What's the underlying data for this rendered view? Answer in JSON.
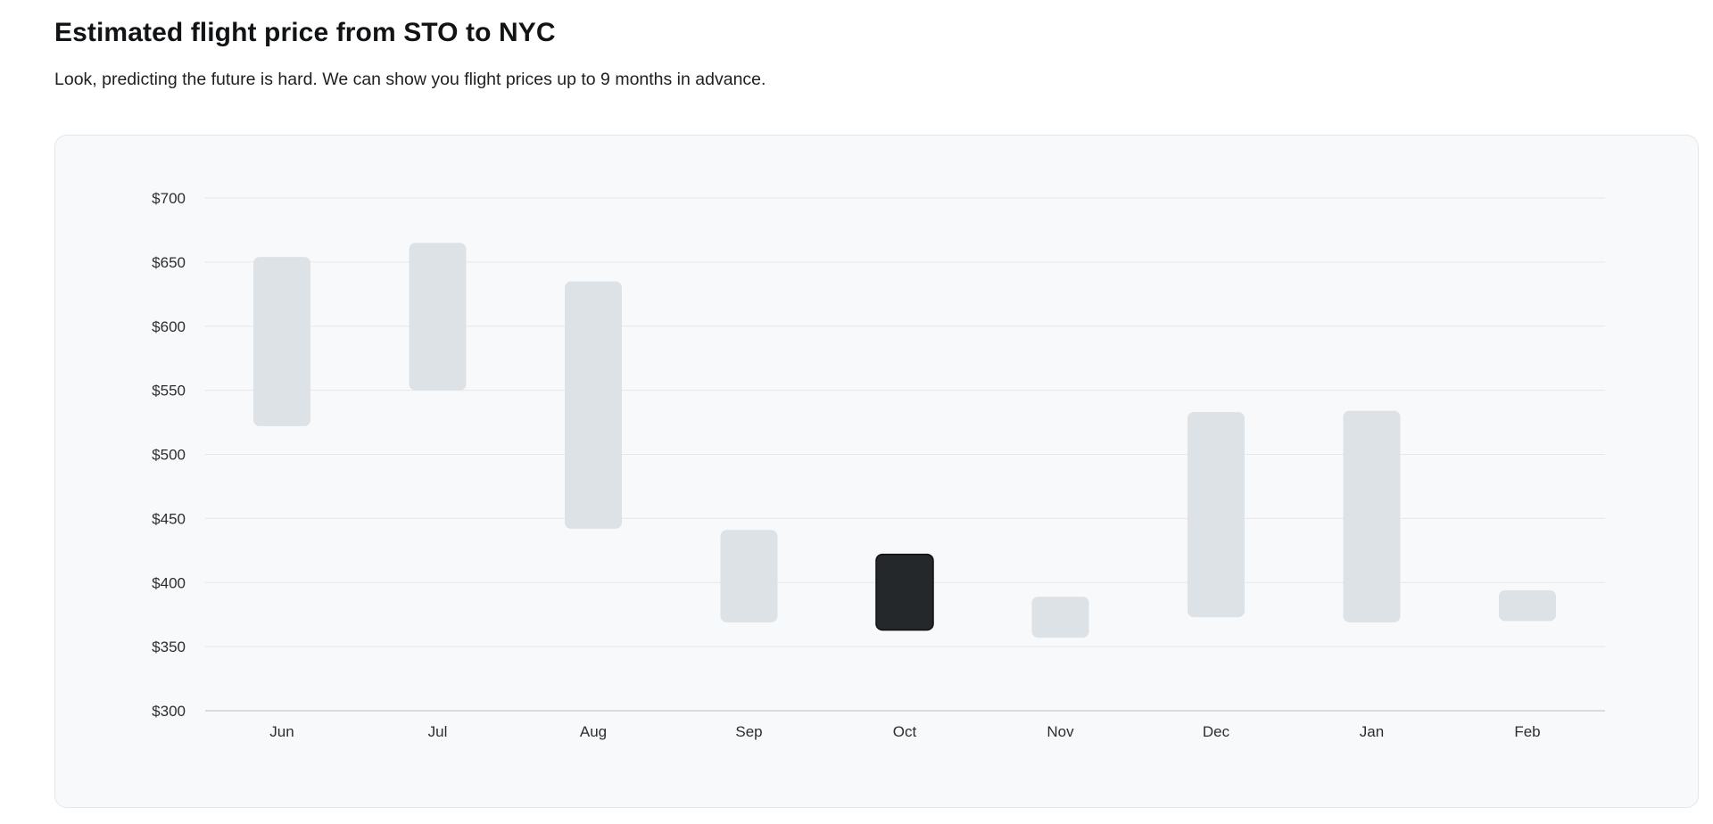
{
  "header": {
    "title": "Estimated flight price from STO to NYC",
    "subtitle": "Look, predicting the future is hard. We can show you flight prices up to 9 months in advance."
  },
  "colors": {
    "range_bar": "#dce2e6",
    "highlight_bar": "#25282b",
    "gridline": "#e4e8eb",
    "baseline": "#cdd4da",
    "card_background": "#f8f9fb"
  },
  "chart_data": {
    "type": "bar",
    "subtype": "floating-range",
    "categories": [
      "Jun",
      "Jul",
      "Aug",
      "Sep",
      "Oct",
      "Nov",
      "Dec",
      "Jan",
      "Feb"
    ],
    "series": [
      {
        "low": [
          522,
          550,
          442,
          369,
          363,
          357,
          373,
          369,
          370
        ],
        "high": [
          654,
          665,
          635,
          441,
          422,
          389,
          533,
          534,
          394
        ]
      }
    ],
    "highlighted_category": "Oct",
    "y_ticks": [
      "$700",
      "$650",
      "$600",
      "$550",
      "$500",
      "$450",
      "$400",
      "$350",
      "$300"
    ],
    "ylim": [
      300,
      700
    ],
    "grid": true
  }
}
